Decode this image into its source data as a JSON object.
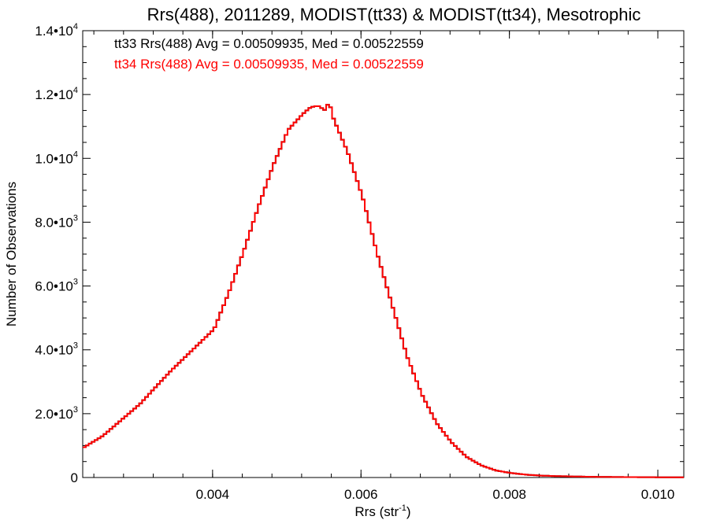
{
  "chart_data": {
    "type": "histogram-step",
    "title": "Rrs(488), 2011289, MODIST(tt33) & MODIST(tt34), Mesotrophic",
    "xlabel": "Rrs (str",
    "xlabel_sup": "-1",
    "xlabel_close": ")",
    "ylabel": "Number of Observations",
    "xlim": [
      0.00225,
      0.01035
    ],
    "ylim": [
      0,
      14000
    ],
    "x_ticks": [
      {
        "value": 0.004,
        "label": "0.004"
      },
      {
        "value": 0.006,
        "label": "0.006"
      },
      {
        "value": 0.008,
        "label": "0.008"
      },
      {
        "value": 0.01,
        "label": "0.010"
      }
    ],
    "y_ticks": [
      {
        "value": 0,
        "mant": "0",
        "exp": ""
      },
      {
        "value": 2000,
        "mant": "2.0•10",
        "exp": "3"
      },
      {
        "value": 4000,
        "mant": "4.0•10",
        "exp": "3"
      },
      {
        "value": 6000,
        "mant": "6.0•10",
        "exp": "3"
      },
      {
        "value": 8000,
        "mant": "8.0•10",
        "exp": "3"
      },
      {
        "value": 10000,
        "mant": "1.0•10",
        "exp": "4"
      },
      {
        "value": 12000,
        "mant": "1.2•10",
        "exp": "4"
      },
      {
        "value": 14000,
        "mant": "1.4•10",
        "exp": "4"
      }
    ],
    "annotations": [
      {
        "text": "tt33 Rrs(488) Avg = 0.00509935, Med = 0.00522559",
        "color": "#000000"
      },
      {
        "text": "tt34 Rrs(488) Avg = 0.00509935, Med = 0.00522559",
        "color": "#ff0000"
      }
    ],
    "series": [
      {
        "name": "tt33",
        "color": "#000000",
        "x": [
          0.00225,
          0.0025,
          0.0028,
          0.003,
          0.0032,
          0.0034,
          0.0036,
          0.0038,
          0.004,
          0.0042,
          0.0044,
          0.0046,
          0.0048,
          0.005,
          0.0052,
          0.0053,
          0.0054,
          0.0055,
          0.00555,
          0.0056,
          0.0058,
          0.006,
          0.0062,
          0.0064,
          0.0066,
          0.0068,
          0.007,
          0.0072,
          0.0074,
          0.0076,
          0.0078,
          0.008,
          0.0082,
          0.0084,
          0.0086,
          0.0088,
          0.009,
          0.0092,
          0.0094,
          0.0096,
          0.0098,
          0.01,
          0.0102,
          0.01035
        ],
        "y": [
          950,
          1300,
          1900,
          2300,
          2800,
          3300,
          3750,
          4200,
          4650,
          5800,
          7100,
          8500,
          9800,
          10900,
          11400,
          11600,
          11650,
          11500,
          11800,
          11300,
          10200,
          8800,
          7000,
          5400,
          3800,
          2600,
          1700,
          1100,
          650,
          380,
          220,
          140,
          90,
          60,
          45,
          35,
          25,
          20,
          15,
          12,
          10,
          8,
          6,
          5
        ]
      },
      {
        "name": "tt34",
        "color": "#ff0000",
        "x": [
          0.00225,
          0.0025,
          0.0028,
          0.003,
          0.0032,
          0.0034,
          0.0036,
          0.0038,
          0.004,
          0.0042,
          0.0044,
          0.0046,
          0.0048,
          0.005,
          0.0052,
          0.0053,
          0.0054,
          0.0055,
          0.00555,
          0.0056,
          0.0058,
          0.006,
          0.0062,
          0.0064,
          0.0066,
          0.0068,
          0.007,
          0.0072,
          0.0074,
          0.0076,
          0.0078,
          0.008,
          0.0082,
          0.0084,
          0.0086,
          0.0088,
          0.009,
          0.0092,
          0.0094,
          0.0096,
          0.0098,
          0.01,
          0.0102,
          0.01035
        ],
        "y": [
          950,
          1300,
          1900,
          2300,
          2800,
          3300,
          3750,
          4200,
          4650,
          5800,
          7100,
          8500,
          9800,
          10900,
          11400,
          11600,
          11650,
          11500,
          11800,
          11300,
          10200,
          8800,
          7000,
          5400,
          3800,
          2600,
          1700,
          1100,
          650,
          380,
          220,
          140,
          90,
          60,
          45,
          35,
          25,
          20,
          15,
          12,
          10,
          8,
          6,
          5
        ]
      }
    ]
  }
}
